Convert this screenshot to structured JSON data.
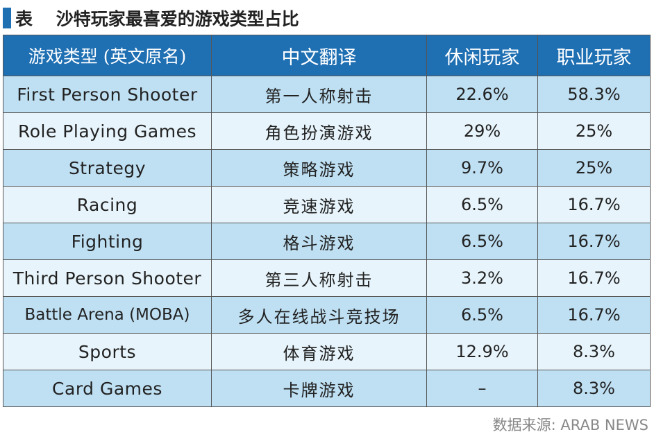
{
  "title": "表 　沙特玩家最喜爱的游戏类型占比",
  "headers": [
    "游戏类型 (英文原名)",
    "中文翻译",
    "休闲玩家",
    "职业玩家"
  ],
  "rows": [
    {
      "en": "First Person Shooter",
      "zh": "第一人称射击",
      "casual": "22.6%",
      "pro": "58.3%"
    },
    {
      "en": "Role Playing Games",
      "zh": "角色扮演游戏",
      "casual": "29%",
      "pro": "25%"
    },
    {
      "en": "Strategy",
      "zh": "策略游戏",
      "casual": "9.7%",
      "pro": "25%"
    },
    {
      "en": "Racing",
      "zh": "竞速游戏",
      "casual": "6.5%",
      "pro": "16.7%"
    },
    {
      "en": "Fighting",
      "zh": "格斗游戏",
      "casual": "6.5%",
      "pro": "16.7%"
    },
    {
      "en": "Third Person Shooter",
      "zh": "第三人称射击",
      "casual": "3.2%",
      "pro": "16.7%"
    },
    {
      "en": "Battle Arena (MOBA)",
      "zh": "多人在线战斗竞技场",
      "casual": "6.5%",
      "pro": "16.7%"
    },
    {
      "en": "Sports",
      "zh": "体育游戏",
      "casual": "12.9%",
      "pro": "8.3%"
    },
    {
      "en": "Card Games",
      "zh": "卡牌游戏",
      "casual": "–",
      "pro": "8.3%"
    }
  ],
  "source": "数据来源: ARAB NEWS",
  "colors": {
    "accent": "#1f6fb3",
    "row_dark": "#bfe0f3",
    "row_light": "#e7f4fb"
  }
}
